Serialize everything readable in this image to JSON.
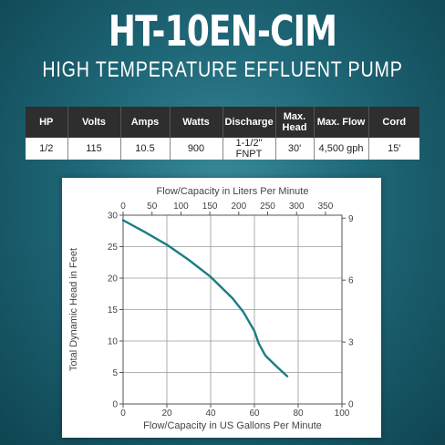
{
  "header": {
    "title": "HT-10EN-CIM",
    "subtitle": "HIGH TEMPERATURE EFFLUENT PUMP"
  },
  "specs": {
    "columns": [
      "HP",
      "Volts",
      "Amps",
      "Watts",
      "Discharge",
      "Max. Head",
      "Max. Flow",
      "Cord"
    ],
    "row": [
      "1/2",
      "115",
      "10.5",
      "900",
      "1-1/2\" FNPT",
      "30'",
      "4,500 gph",
      "15'"
    ]
  },
  "colors": {
    "background": "#1f6878",
    "curve": "#1b7c86",
    "table_header": "#2e2e2e"
  },
  "chart_data": {
    "type": "line",
    "title": "",
    "top_axis_label": "Flow/Capacity in Liters Per Minute",
    "xlabel": "Flow/Capacity in US Gallons Per Minute",
    "ylabel": "Total Dynamic Head in Feet",
    "xlim": [
      0,
      100
    ],
    "ylim": [
      0,
      30
    ],
    "x_ticks": [
      0,
      20,
      40,
      60,
      80,
      100
    ],
    "y_ticks": [
      0,
      5,
      10,
      15,
      20,
      25,
      30
    ],
    "top_lim": [
      0,
      378.5
    ],
    "top_ticks": [
      0,
      50,
      100,
      150,
      200,
      250,
      300,
      350
    ],
    "right_lim": [
      0,
      9.144
    ],
    "right_ticks": [
      0,
      3,
      6,
      9
    ],
    "grid": true,
    "series": [
      {
        "x": [
          0,
          10,
          20,
          30,
          40,
          50,
          55,
          60,
          62,
          65,
          70,
          75
        ],
        "y": [
          29.2,
          27.3,
          25.3,
          22.9,
          20.2,
          16.8,
          14.6,
          11.6,
          9.6,
          7.7,
          6.0,
          4.4
        ]
      }
    ]
  }
}
